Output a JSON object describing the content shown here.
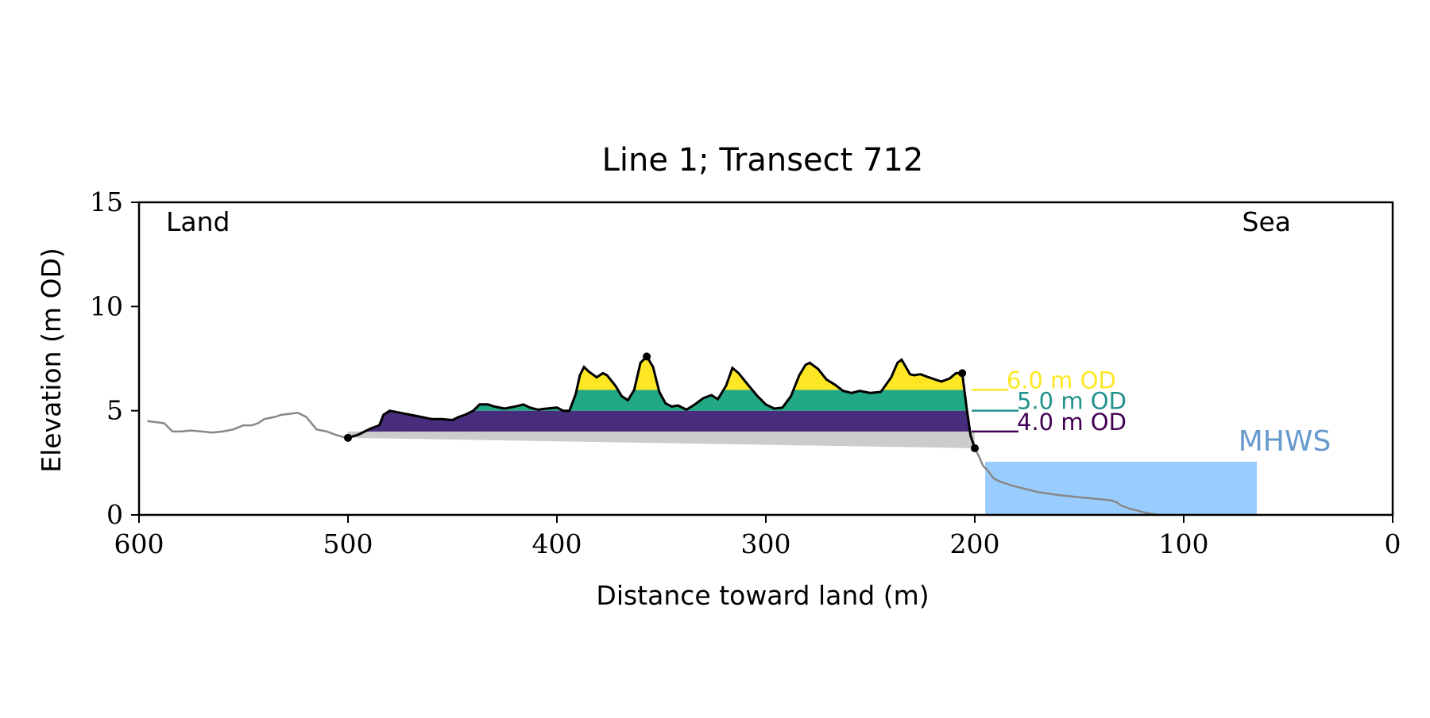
{
  "chart_data": {
    "type": "area",
    "title": "Line 1; Transect 712",
    "xlabel": "Distance toward land (m)",
    "ylabel": "Elevation (m OD)",
    "xlim": [
      600,
      0
    ],
    "ylim": [
      0,
      15
    ],
    "x_ticks": [
      600,
      500,
      400,
      300,
      200,
      100,
      0
    ],
    "y_ticks": [
      0,
      5,
      10,
      15
    ],
    "x_tick_labels": [
      "600",
      "500",
      "400",
      "300",
      "200",
      "100",
      "0"
    ],
    "y_tick_labels": [
      "0",
      "5",
      "10",
      "15"
    ],
    "grid": false,
    "annotations": {
      "land": "Land",
      "sea": "Sea",
      "mhws": "MHWS"
    },
    "mhws": {
      "elevation": 2.55,
      "x_range": [
        65,
        195
      ]
    },
    "dune_toe": {
      "x": 200,
      "y": 3.2
    },
    "dune_heel": {
      "x": 500,
      "y": 3.7
    },
    "dune_crest": {
      "x": 357,
      "y": 7.6
    },
    "seaward_crest": {
      "x": 206,
      "y": 6.8
    },
    "water_levels": [
      {
        "label": "6.0 m OD",
        "value": 6.0,
        "color": "#fde725",
        "x_range": [
          205,
          390
        ]
      },
      {
        "label": "5.0 m OD",
        "value": 5.0,
        "color": "#21918c",
        "x_range": [
          200,
          492
        ]
      },
      {
        "label": "4.0 m OD",
        "value": 4.0,
        "color": "#440154",
        "x_range": [
          200,
          495
        ]
      }
    ],
    "fill_colors": {
      "above_6": "#fde725",
      "band_5_6": "#22a884",
      "band_4_5": "#472d7b",
      "below_4": "#cccccc",
      "mhws": "#99ccff",
      "mhws_text": "#6699cc",
      "profile_outer": "#888888",
      "profile_dune": "#000000"
    },
    "series": [
      {
        "name": "",
        "x": [
          596,
          588,
          584,
          580,
          575,
          570,
          565,
          560,
          555,
          550,
          546,
          543,
          540,
          535,
          532,
          528,
          524,
          520,
          515,
          510,
          506,
          501,
          500,
          495,
          492,
          489,
          485,
          483,
          480,
          475,
          470,
          465,
          460,
          455,
          450,
          447,
          444,
          440,
          437,
          433,
          430,
          425,
          420,
          416,
          413,
          409,
          405,
          400,
          397,
          394,
          391,
          389,
          387,
          385,
          381,
          378,
          376,
          372,
          369,
          366,
          363,
          360,
          357,
          354,
          351,
          348,
          345,
          342,
          338,
          334,
          330,
          326,
          323,
          319,
          316,
          313,
          309,
          304,
          300,
          296,
          292,
          288,
          284,
          281,
          279,
          275,
          271,
          267,
          263,
          259,
          255,
          250,
          245,
          240,
          237,
          235,
          233,
          231,
          229,
          226,
          222,
          219,
          216,
          212,
          209,
          206,
          204,
          202,
          200,
          198,
          196,
          194,
          191,
          188,
          182,
          176,
          170,
          160,
          150,
          140,
          135,
          132,
          130,
          126,
          122,
          118,
          115,
          112
        ],
        "y": [
          4.5,
          4.4,
          4.0,
          4.0,
          4.05,
          4.0,
          3.95,
          4.0,
          4.1,
          4.3,
          4.3,
          4.4,
          4.6,
          4.7,
          4.8,
          4.85,
          4.9,
          4.7,
          4.1,
          4.0,
          3.85,
          3.7,
          3.7,
          3.85,
          4.0,
          4.15,
          4.3,
          4.8,
          5.0,
          4.9,
          4.8,
          4.7,
          4.6,
          4.6,
          4.55,
          4.7,
          4.8,
          5.0,
          5.3,
          5.3,
          5.2,
          5.1,
          5.2,
          5.3,
          5.15,
          5.05,
          5.1,
          5.15,
          5.0,
          5.0,
          5.8,
          6.7,
          7.1,
          6.9,
          6.6,
          6.8,
          6.7,
          6.2,
          5.7,
          5.5,
          6.0,
          7.3,
          7.6,
          7.1,
          5.9,
          5.35,
          5.2,
          5.25,
          5.05,
          5.3,
          5.6,
          5.75,
          5.55,
          6.2,
          7.05,
          6.8,
          6.3,
          5.7,
          5.3,
          5.1,
          5.15,
          5.7,
          6.7,
          7.2,
          7.3,
          7.0,
          6.5,
          6.25,
          5.95,
          5.85,
          5.95,
          5.85,
          5.9,
          6.6,
          7.3,
          7.45,
          7.1,
          6.75,
          6.7,
          6.75,
          6.6,
          6.5,
          6.4,
          6.55,
          6.8,
          6.8,
          5.2,
          3.8,
          3.2,
          2.8,
          2.35,
          2.15,
          1.75,
          1.6,
          1.4,
          1.25,
          1.1,
          0.95,
          0.85,
          0.75,
          0.7,
          0.6,
          0.45,
          0.3,
          0.2,
          0.1,
          0.05,
          0.0
        ]
      }
    ],
    "dune_range": [
      200,
      500
    ]
  }
}
